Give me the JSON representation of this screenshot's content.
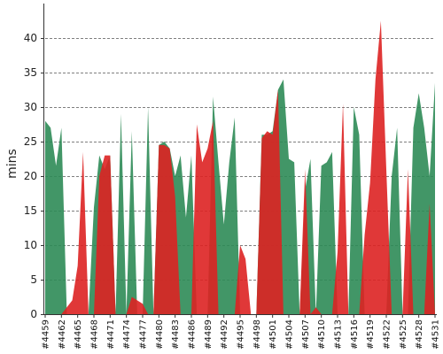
{
  "chart_data": {
    "type": "area",
    "title": "",
    "xlabel": "",
    "ylabel": "mins",
    "ylim": [
      0,
      45
    ],
    "yticks": [
      0,
      5,
      10,
      15,
      20,
      25,
      30,
      35,
      40
    ],
    "grid": "horizontal dashed",
    "legend": "none",
    "x": [
      "#4459",
      "#4460",
      "#4461",
      "#4462",
      "#4463",
      "#4464",
      "#4465",
      "#4466",
      "#4467",
      "#4468",
      "#4469",
      "#4470",
      "#4471",
      "#4472",
      "#4473",
      "#4474",
      "#4475",
      "#4476",
      "#4477",
      "#4478",
      "#4479",
      "#4480",
      "#4481",
      "#4482",
      "#4483",
      "#4484",
      "#4485",
      "#4486",
      "#4487",
      "#4488",
      "#4489",
      "#4490",
      "#4491",
      "#4492",
      "#4493",
      "#4494",
      "#4495",
      "#4496",
      "#4497",
      "#4498",
      "#4499",
      "#4500",
      "#4501",
      "#4502",
      "#4503",
      "#4504",
      "#4505",
      "#4506",
      "#4507",
      "#4508",
      "#4509",
      "#4510",
      "#4511",
      "#4512",
      "#4513",
      "#4514",
      "#4515",
      "#4516",
      "#4517",
      "#4518",
      "#4519",
      "#4520",
      "#4521",
      "#4522",
      "#4523",
      "#4524",
      "#4525",
      "#4526",
      "#4527",
      "#4528",
      "#4529",
      "#4530",
      "#4531"
    ],
    "xticks_shown": [
      "#4459",
      "#4462",
      "#4465",
      "#4468",
      "#4471",
      "#4474",
      "#4477",
      "#4480",
      "#4483",
      "#4486",
      "#4489",
      "#4492",
      "#4495",
      "#4498",
      "#4501",
      "#4504",
      "#4507",
      "#4510",
      "#4513",
      "#4516",
      "#4519",
      "#4522",
      "#4525",
      "#4528",
      "#4531"
    ],
    "series": [
      {
        "color": "#2e8b57",
        "values": [
          28,
          27,
          21.5,
          27,
          0,
          0,
          0,
          0,
          0,
          15.5,
          23,
          21,
          23,
          0,
          29,
          0,
          26.5,
          0,
          0,
          30,
          0,
          24.5,
          25,
          24,
          20,
          23,
          14,
          23,
          0,
          0,
          0,
          31.5,
          22,
          13,
          22,
          28.5,
          0,
          0,
          0,
          0,
          26,
          26,
          26.5,
          32.5,
          34,
          22.5,
          22,
          0,
          18,
          22.5,
          0,
          21.5,
          22,
          23.5,
          0,
          0,
          0,
          30,
          26,
          0,
          0,
          0,
          0,
          0,
          20,
          27,
          0,
          0,
          27,
          32,
          27,
          20,
          33.5
        ]
      },
      {
        "color": "#dd2222",
        "values": [
          0,
          0,
          0,
          0,
          1,
          2,
          7,
          23.5,
          0,
          0,
          20,
          23,
          23,
          0,
          0,
          0,
          2.5,
          2,
          1.5,
          0,
          0,
          24.5,
          24.5,
          24,
          17,
          0,
          0,
          0,
          27.5,
          22,
          24,
          28,
          0,
          0,
          0,
          0,
          10,
          8,
          0,
          0,
          25.5,
          26.5,
          26,
          32.5,
          0,
          0,
          0,
          0,
          21,
          0,
          1,
          0,
          0,
          0,
          9,
          30.5,
          0,
          0,
          0,
          11.5,
          19,
          34,
          42.5,
          21,
          0,
          0,
          0,
          21,
          0,
          0,
          0,
          16,
          0
        ]
      }
    ]
  }
}
